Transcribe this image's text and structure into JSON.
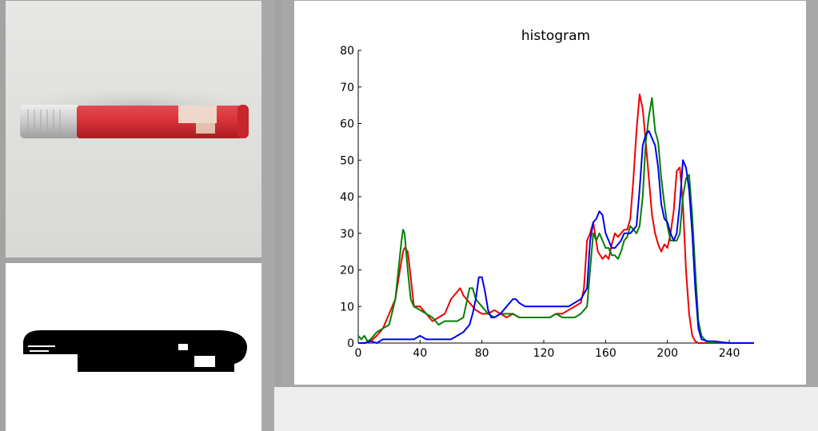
{
  "photo": {
    "object": "red marker pen with grey cap",
    "label_text": ""
  },
  "mask": {
    "object": "binary segmentation mask of the pen"
  },
  "colors": {
    "red": "#ee0000",
    "green": "#008000",
    "blue": "#0000ee",
    "axis": "#000000",
    "window_bg": "#eeeeee"
  },
  "chart_data": {
    "type": "line",
    "title": "histogram",
    "xlabel": "",
    "ylabel": "",
    "xlim": [
      0,
      256
    ],
    "ylim": [
      0,
      80
    ],
    "xticks": [
      0,
      40,
      80,
      120,
      160,
      200,
      240
    ],
    "yticks": [
      0,
      10,
      20,
      30,
      40,
      50,
      60,
      70,
      80
    ],
    "grid": false,
    "legend": "none",
    "series": [
      {
        "color": "#ee0000",
        "x": [
          0,
          5,
          8,
          12,
          16,
          20,
          24,
          27,
          29,
          30,
          32,
          34,
          36,
          40,
          44,
          48,
          52,
          56,
          60,
          64,
          66,
          68,
          70,
          72,
          76,
          80,
          84,
          88,
          92,
          96,
          100,
          104,
          108,
          112,
          116,
          120,
          124,
          128,
          132,
          136,
          140,
          144,
          146,
          148,
          150,
          152,
          155,
          158,
          160,
          162,
          164,
          166,
          168,
          170,
          172,
          174,
          176,
          178,
          180,
          182,
          183,
          184,
          186,
          188,
          190,
          192,
          194,
          196,
          198,
          200,
          202,
          204,
          206,
          208,
          210,
          212,
          214,
          216,
          218,
          220,
          224,
          230,
          240,
          256
        ],
        "y": [
          0,
          0,
          0.5,
          2,
          4,
          8,
          12,
          20,
          25,
          26,
          25,
          18,
          10,
          10,
          8,
          6,
          7,
          8,
          12,
          14,
          15,
          13,
          12,
          11,
          9,
          8,
          8,
          9,
          8,
          7,
          8,
          7,
          7,
          7,
          7,
          7,
          7,
          8,
          8,
          9,
          10,
          11,
          15,
          28,
          30,
          33,
          25,
          23,
          24,
          23,
          27,
          30,
          29,
          30,
          31,
          31,
          34,
          45,
          58,
          68,
          66,
          64,
          55,
          45,
          35,
          30,
          27,
          25,
          27,
          26,
          30,
          36,
          47,
          48,
          38,
          20,
          8,
          2,
          0.5,
          0,
          0,
          0,
          0,
          0
        ]
      },
      {
        "color": "#008000",
        "x": [
          0,
          2,
          4,
          6,
          8,
          12,
          16,
          20,
          24,
          26,
          28,
          29,
          30,
          32,
          34,
          36,
          40,
          44,
          48,
          50,
          52,
          56,
          60,
          64,
          68,
          70,
          72,
          74,
          76,
          80,
          84,
          88,
          92,
          96,
          100,
          104,
          108,
          112,
          116,
          120,
          124,
          128,
          132,
          136,
          140,
          144,
          148,
          150,
          152,
          154,
          156,
          158,
          160,
          162,
          164,
          166,
          168,
          170,
          172,
          174,
          176,
          178,
          180,
          182,
          184,
          186,
          188,
          190,
          192,
          194,
          196,
          198,
          200,
          202,
          204,
          206,
          208,
          210,
          212,
          214,
          216,
          218,
          220,
          222,
          226,
          230,
          240,
          256
        ],
        "y": [
          2,
          1,
          2,
          0.5,
          1,
          3,
          4,
          5,
          12,
          20,
          28,
          31,
          30,
          20,
          12,
          10,
          9,
          8,
          7,
          6,
          5,
          6,
          6,
          6,
          7,
          11,
          15,
          15,
          12,
          10,
          8,
          7,
          8,
          8,
          8,
          7,
          7,
          7,
          7,
          7,
          7,
          8,
          7,
          7,
          7,
          8,
          10,
          20,
          30,
          28,
          30,
          28,
          26,
          26,
          24,
          24,
          23,
          25,
          28,
          29,
          32,
          31,
          30,
          32,
          40,
          55,
          62,
          67,
          58,
          55,
          45,
          38,
          32,
          28,
          28,
          28,
          30,
          40,
          45,
          46,
          35,
          20,
          6,
          2,
          0,
          0,
          0,
          0
        ]
      },
      {
        "color": "#0000ee",
        "x": [
          0,
          4,
          8,
          12,
          16,
          20,
          24,
          28,
          32,
          36,
          40,
          44,
          48,
          52,
          56,
          60,
          64,
          68,
          72,
          74,
          76,
          78,
          80,
          82,
          84,
          86,
          88,
          92,
          96,
          100,
          102,
          104,
          108,
          112,
          116,
          120,
          124,
          128,
          132,
          136,
          140,
          144,
          148,
          150,
          152,
          154,
          156,
          158,
          160,
          162,
          164,
          166,
          168,
          170,
          172,
          174,
          176,
          178,
          180,
          182,
          184,
          186,
          188,
          190,
          192,
          194,
          196,
          198,
          200,
          202,
          204,
          206,
          208,
          210,
          212,
          214,
          216,
          218,
          220,
          222,
          226,
          230,
          240,
          256
        ],
        "y": [
          0,
          0,
          0.5,
          0,
          1,
          1,
          1,
          1,
          1,
          1,
          2,
          1,
          1,
          1,
          1,
          1,
          2,
          3,
          5,
          8,
          12,
          18,
          18,
          14,
          9,
          7,
          7,
          8,
          10,
          12,
          12,
          11,
          10,
          10,
          10,
          10,
          10,
          10,
          10,
          10,
          11,
          12,
          15,
          28,
          33,
          34,
          36,
          35,
          30,
          28,
          26,
          26,
          27,
          28,
          30,
          30,
          30,
          31,
          32,
          42,
          54,
          57,
          58,
          56,
          54,
          48,
          38,
          34,
          33,
          30,
          28,
          30,
          38,
          50,
          48,
          42,
          30,
          15,
          4,
          1,
          0.5,
          0.5,
          0,
          0
        ]
      }
    ]
  }
}
